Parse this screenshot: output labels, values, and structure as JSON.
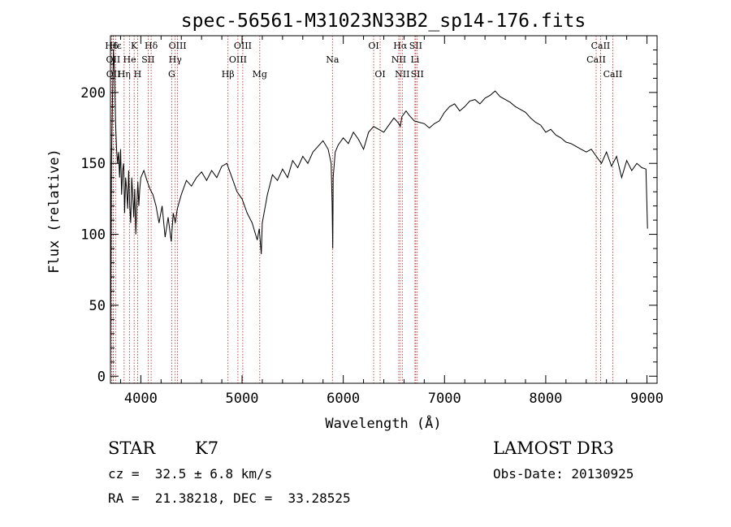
{
  "chart_data": {
    "type": "line",
    "title": "spec-56561-M31023N33B2_sp14-176.fits",
    "xlabel": "Wavelength (Å)",
    "ylabel": "Flux (relative)",
    "xlim": [
      3700,
      9100
    ],
    "ylim": [
      -5,
      240
    ],
    "x_ticks": [
      4000,
      5000,
      6000,
      7000,
      8000,
      9000
    ],
    "y_ticks": [
      0,
      50,
      100,
      150,
      200
    ],
    "line_color": "#000000",
    "marker_color": "#b22222",
    "series": [
      {
        "x": [
          3700,
          3710,
          3720,
          3730,
          3740,
          3750,
          3760,
          3770,
          3780,
          3790,
          3800,
          3810,
          3820,
          3830,
          3840,
          3850,
          3860,
          3870,
          3880,
          3890,
          3900,
          3910,
          3920,
          3930,
          3940,
          3950,
          3960,
          3970,
          3980,
          3990,
          4000,
          4030,
          4060,
          4090,
          4120,
          4150,
          4180,
          4210,
          4240,
          4270,
          4300,
          4320,
          4340,
          4360,
          4400,
          4450,
          4500,
          4550,
          4600,
          4650,
          4700,
          4750,
          4800,
          4850,
          4900,
          4950,
          5000,
          5050,
          5100,
          5150,
          5170,
          5190,
          5200,
          5250,
          5300,
          5350,
          5400,
          5450,
          5500,
          5550,
          5600,
          5650,
          5700,
          5750,
          5800,
          5850,
          5880,
          5890,
          5896,
          5900,
          5920,
          5950,
          6000,
          6050,
          6100,
          6150,
          6200,
          6250,
          6300,
          6350,
          6400,
          6450,
          6500,
          6550,
          6563,
          6580,
          6620,
          6650,
          6700,
          6750,
          6800,
          6850,
          6900,
          6950,
          7000,
          7050,
          7100,
          7150,
          7200,
          7250,
          7300,
          7350,
          7400,
          7450,
          7500,
          7550,
          7600,
          7650,
          7700,
          7750,
          7800,
          7850,
          7900,
          7950,
          8000,
          8050,
          8100,
          8150,
          8200,
          8250,
          8300,
          8350,
          8400,
          8450,
          8500,
          8550,
          8600,
          8650,
          8700,
          8750,
          8800,
          8850,
          8900,
          8950,
          8990,
          9000,
          9005
        ],
        "y": [
          2,
          150,
          195,
          230,
          215,
          180,
          160,
          150,
          158,
          140,
          160,
          128,
          145,
          150,
          115,
          140,
          132,
          118,
          145,
          120,
          108,
          140,
          128,
          112,
          132,
          100,
          120,
          137,
          120,
          132,
          140,
          145,
          138,
          132,
          128,
          120,
          108,
          120,
          98,
          112,
          95,
          115,
          108,
          118,
          128,
          138,
          134,
          140,
          144,
          138,
          145,
          140,
          148,
          150,
          140,
          130,
          125,
          115,
          108,
          96,
          104,
          86,
          108,
          128,
          142,
          138,
          146,
          140,
          152,
          147,
          155,
          150,
          158,
          162,
          166,
          160,
          150,
          122,
          90,
          140,
          158,
          163,
          168,
          164,
          172,
          167,
          160,
          172,
          176,
          174,
          172,
          177,
          182,
          178,
          176,
          183,
          187,
          184,
          180,
          179,
          178,
          175,
          178,
          180,
          186,
          190,
          192,
          187,
          190,
          194,
          195,
          192,
          196,
          198,
          201,
          197,
          195,
          193,
          190,
          188,
          186,
          182,
          179,
          177,
          172,
          174,
          170,
          168,
          165,
          164,
          162,
          160,
          158,
          160,
          155,
          150,
          158,
          148,
          155,
          140,
          152,
          145,
          150,
          147,
          146,
          120,
          104
        ]
      }
    ],
    "line_markers": [
      {
        "label": "H6",
        "x": 3712,
        "row": 0
      },
      {
        "label": "OII",
        "x": 3727,
        "row": 1
      },
      {
        "label": "OII",
        "x": 3729,
        "row": 2
      },
      {
        "label": "Hε",
        "x": 3750,
        "row": 0
      },
      {
        "label": "K",
        "x": 3934,
        "row": 0
      },
      {
        "label": "He",
        "x": 3889,
        "row": 1
      },
      {
        "label": "Hη",
        "x": 3835,
        "row": 2
      },
      {
        "label": "H",
        "x": 3968,
        "row": 2
      },
      {
        "label": "SII",
        "x": 4072,
        "row": 1
      },
      {
        "label": "Hδ",
        "x": 4102,
        "row": 0
      },
      {
        "label": "OIII",
        "x": 4363,
        "row": 0
      },
      {
        "label": "Hγ",
        "x": 4340,
        "row": 1
      },
      {
        "label": "G",
        "x": 4305,
        "row": 2
      },
      {
        "label": "Hβ",
        "x": 4861,
        "row": 2
      },
      {
        "label": "OIII",
        "x": 5007,
        "row": 0
      },
      {
        "label": "OIII",
        "x": 4959,
        "row": 1
      },
      {
        "label": "Mg",
        "x": 5175,
        "row": 2
      },
      {
        "label": "Na",
        "x": 5893,
        "row": 1
      },
      {
        "label": "OI",
        "x": 6300,
        "row": 0
      },
      {
        "label": "OI",
        "x": 6364,
        "row": 2
      },
      {
        "label": "Hα",
        "x": 6563,
        "row": 0
      },
      {
        "label": "NII",
        "x": 6548,
        "row": 1
      },
      {
        "label": "NII",
        "x": 6583,
        "row": 2
      },
      {
        "label": "SII",
        "x": 6716,
        "row": 0
      },
      {
        "label": "Li",
        "x": 6708,
        "row": 1
      },
      {
        "label": "SII",
        "x": 6731,
        "row": 2
      },
      {
        "label": "CaII",
        "x": 8498,
        "row": 1
      },
      {
        "label": "CaII",
        "x": 8542,
        "row": 0
      },
      {
        "label": "CaII",
        "x": 8662,
        "row": 2
      }
    ]
  },
  "info": {
    "class_label": "STAR",
    "subclass": "K7",
    "redshift": "cz =  32.5 ± 6.8 km/s",
    "coords": "RA =  21.38218, DEC =  33.28525",
    "survey": "LAMOST DR3",
    "obs_date": "Obs-Date: 20130925"
  }
}
